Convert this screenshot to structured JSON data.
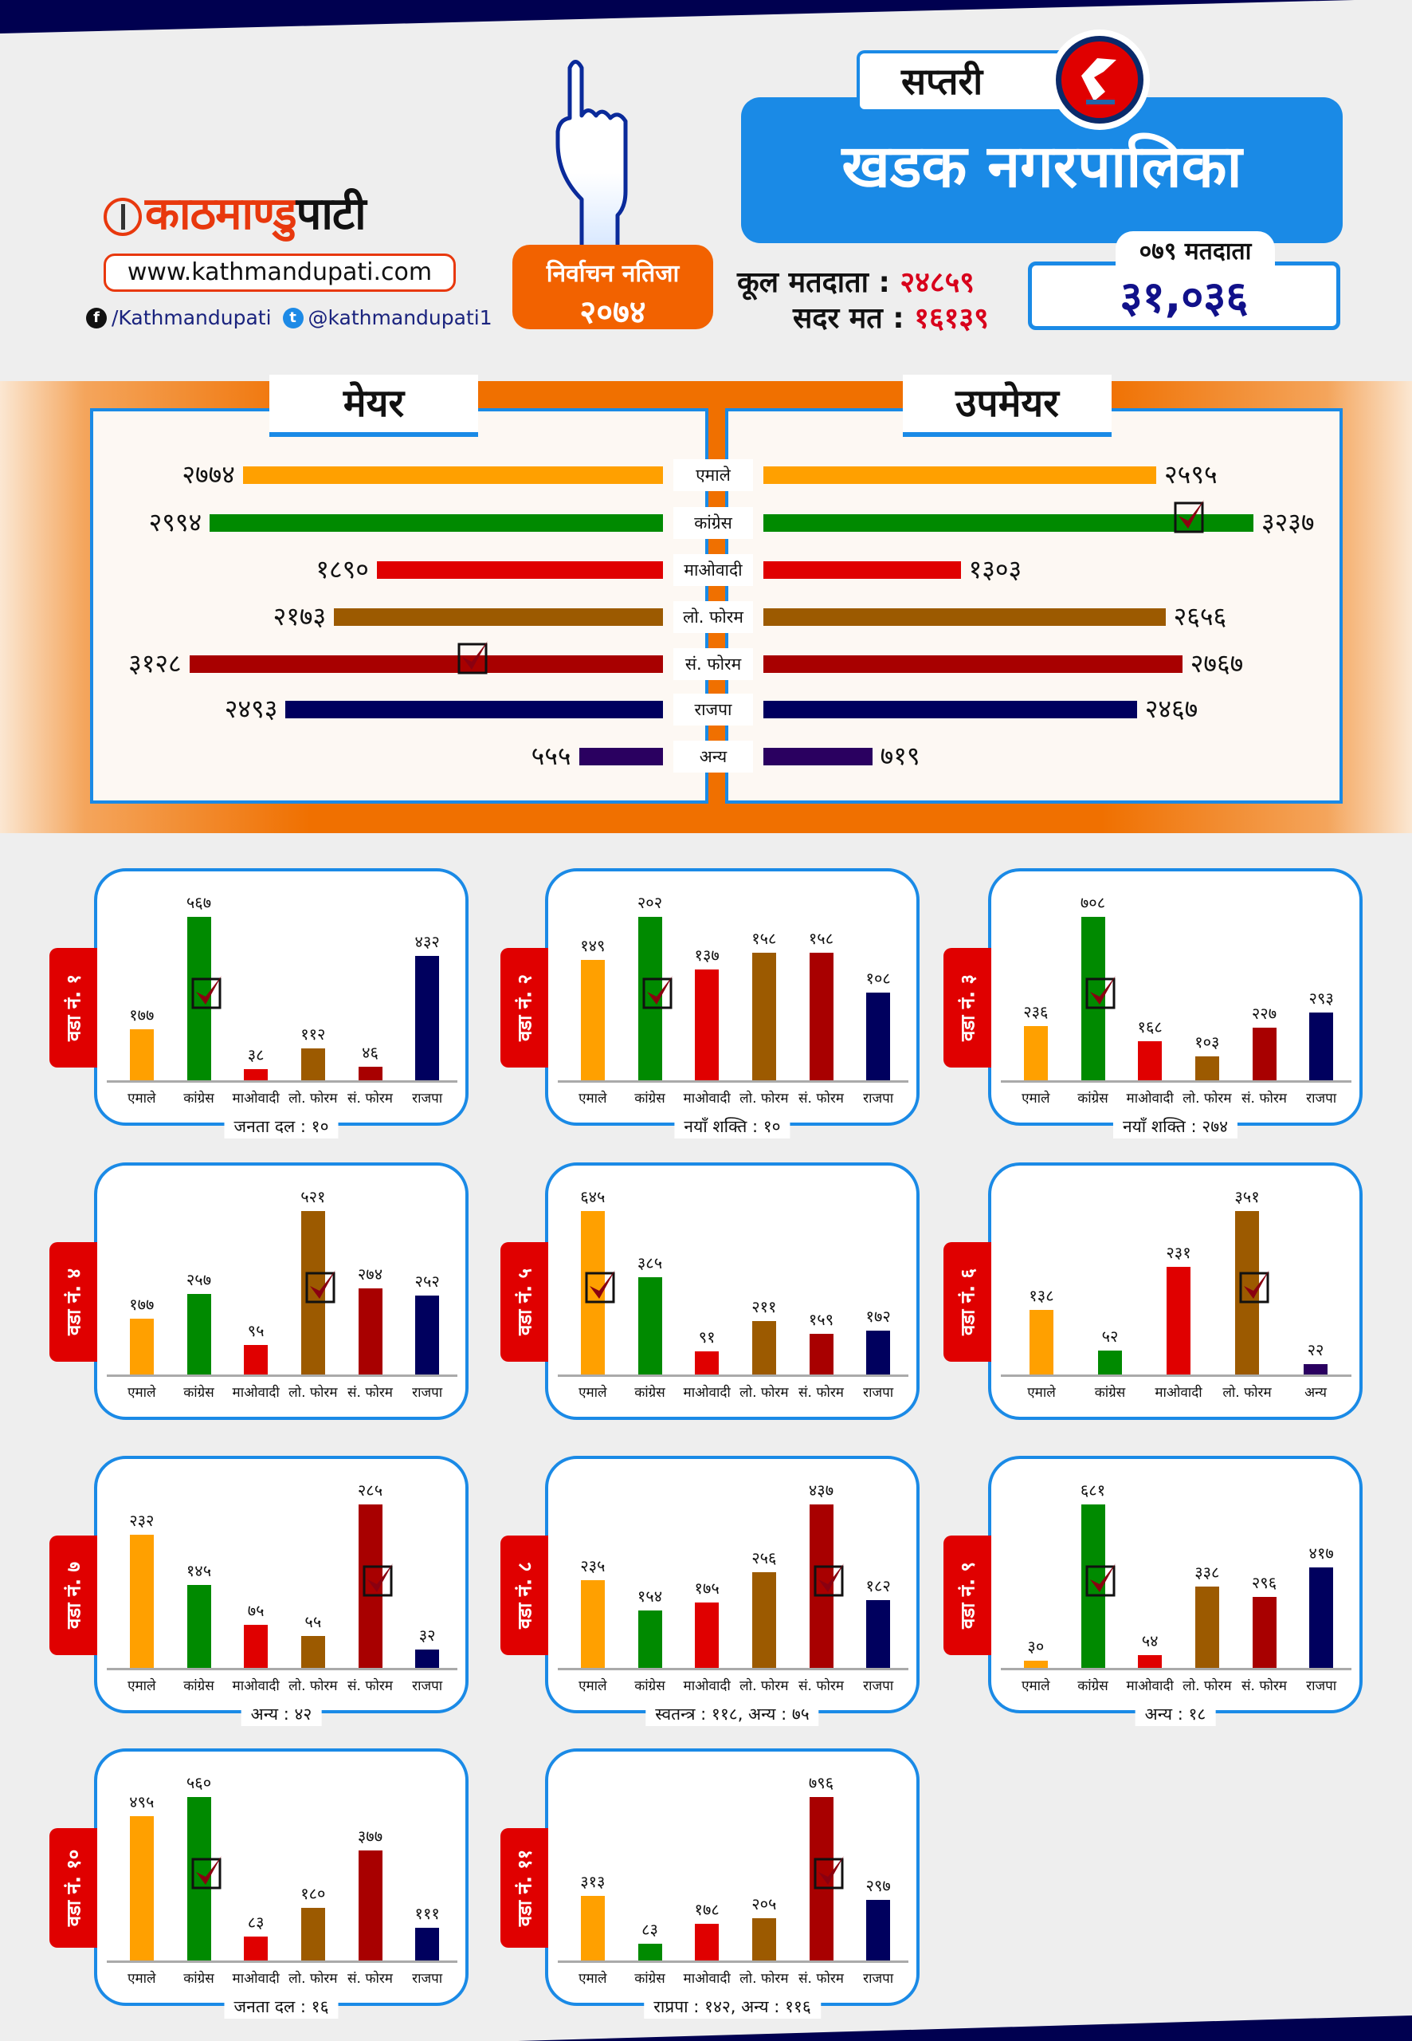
{
  "header": {
    "logo_text_a": "काठमाण्डु",
    "logo_text_b": "पाटी",
    "website": "www.kathmandupati.com",
    "facebook": "/Kathmandupati",
    "twitter": "@kathmandupati1",
    "badge_line1": "निर्वाचन नतिजा",
    "badge_line2": "२०७४",
    "district": "सप्तरी",
    "municipality": "खडक नगरपालिका",
    "total_voters_label": "कूल मतदाता :",
    "total_voters": "२४८५९",
    "valid_votes_label": "सदर मत :",
    "valid_votes": "१६१३९",
    "voters_079_label": "०७९ मतदाता",
    "voters_079": "३१,०३६"
  },
  "results": {
    "mayor_title": "मेयर",
    "deputy_title": "उपमेयर",
    "mayor_winner": "सं. फोरम",
    "deputy_winner": "कांग्रेस",
    "rows": [
      {
        "party": "एमाले",
        "color": "#ffa000",
        "mayor": "२७७४",
        "deputy": "२५९५"
      },
      {
        "party": "कांग्रेस",
        "color": "#008a00",
        "mayor": "२९९४",
        "deputy": "३२३७"
      },
      {
        "party": "माओवादी",
        "color": "#e00000",
        "mayor": "१८९०",
        "deputy": "१३०३"
      },
      {
        "party": "लो. फोरम",
        "color": "#9c5a00",
        "mayor": "२१७३",
        "deputy": "२६५६"
      },
      {
        "party": "सं. फोरम",
        "color": "#a80000",
        "mayor": "३१२८",
        "deputy": "२७६७"
      },
      {
        "party": "राजपा",
        "color": "#00005e",
        "mayor": "२४९३",
        "deputy": "२४६७"
      },
      {
        "party": "अन्य",
        "color": "#2a0060",
        "mayor": "५५५",
        "deputy": "७१९"
      }
    ]
  },
  "party_colors": {
    "एमाले": "#ffa000",
    "कांग्रेस": "#008a00",
    "माओवादी": "#e00000",
    "लो. फोरम": "#9c5a00",
    "सं. फोरम": "#a80000",
    "राजपा": "#00005e",
    "अन्य": "#2a0060"
  },
  "chart_data": [
    {
      "type": "bar",
      "title": "वडा नं. १",
      "categories": [
        "एमाले",
        "कांग्रेस",
        "माओवादी",
        "लो. फोरम",
        "सं. फोरम",
        "राजपा"
      ],
      "values": [
        177,
        567,
        38,
        112,
        46,
        432
      ],
      "winner": "कांग्रेस",
      "footer": "जनता दल : १०"
    },
    {
      "type": "bar",
      "title": "वडा नं. २",
      "categories": [
        "एमाले",
        "कांग्रेस",
        "माओवादी",
        "लो. फोरम",
        "सं. फोरम",
        "राजपा"
      ],
      "values": [
        149,
        202,
        137,
        158,
        158,
        108
      ],
      "winner": "कांग्रेस",
      "footer": "नयाँ शक्ति : १०"
    },
    {
      "type": "bar",
      "title": "वडा नं. ३",
      "categories": [
        "एमाले",
        "कांग्रेस",
        "माओवादी",
        "लो. फोरम",
        "सं. फोरम",
        "राजपा"
      ],
      "values": [
        236,
        708,
        168,
        103,
        227,
        293
      ],
      "winner": "कांग्रेस",
      "footer": "नयाँ शक्ति : २७४"
    },
    {
      "type": "bar",
      "title": "वडा नं. ४",
      "categories": [
        "एमाले",
        "कांग्रेस",
        "माओवादी",
        "लो. फोरम",
        "सं. फोरम",
        "राजपा"
      ],
      "values": [
        177,
        257,
        95,
        521,
        274,
        252
      ],
      "winner": "लो. फोरम",
      "footer": ""
    },
    {
      "type": "bar",
      "title": "वडा नं. ५",
      "categories": [
        "एमाले",
        "कांग्रेस",
        "माओवादी",
        "लो. फोरम",
        "सं. फोरम",
        "राजपा"
      ],
      "values": [
        645,
        385,
        91,
        211,
        159,
        172
      ],
      "winner": "एमाले",
      "footer": ""
    },
    {
      "type": "bar",
      "title": "वडा नं. ६",
      "categories": [
        "एमाले",
        "कांग्रेस",
        "माओवादी",
        "लो. फोरम",
        "अन्य"
      ],
      "values": [
        138,
        52,
        231,
        351,
        22
      ],
      "winner": "लो. फोरम",
      "footer": ""
    },
    {
      "type": "bar",
      "title": "वडा नं. ७",
      "categories": [
        "एमाले",
        "कांग्रेस",
        "माओवादी",
        "लो. फोरम",
        "सं. फोरम",
        "राजपा"
      ],
      "values": [
        232,
        145,
        75,
        55,
        285,
        32
      ],
      "winner": "सं. फोरम",
      "footer": "अन्य : ४२"
    },
    {
      "type": "bar",
      "title": "वडा नं. ८",
      "categories": [
        "एमाले",
        "कांग्रेस",
        "माओवादी",
        "लो. फोरम",
        "सं. फोरम",
        "राजपा"
      ],
      "values": [
        235,
        154,
        175,
        256,
        437,
        182
      ],
      "winner": "सं. फोरम",
      "footer": "स्वतन्त्र : ११८, अन्य : ७५"
    },
    {
      "type": "bar",
      "title": "वडा नं. ९",
      "categories": [
        "एमाले",
        "कांग्रेस",
        "माओवादी",
        "लो. फोरम",
        "सं. फोरम",
        "राजपा"
      ],
      "values": [
        30,
        681,
        54,
        338,
        296,
        417
      ],
      "winner": "कांग्रेस",
      "footer": "अन्य : १८"
    },
    {
      "type": "bar",
      "title": "वडा नं. १०",
      "categories": [
        "एमाले",
        "कांग्रेस",
        "माओवादी",
        "लो. फोरम",
        "सं. फोरम",
        "राजपा"
      ],
      "values": [
        495,
        560,
        83,
        180,
        377,
        111
      ],
      "winner": "कांग्रेस",
      "footer": "जनता दल : १६"
    },
    {
      "type": "bar",
      "title": "वडा नं. ११",
      "categories": [
        "एमाले",
        "कांग्रेस",
        "माओवादी",
        "लो. फोरम",
        "सं. फोरम",
        "राजपा"
      ],
      "values": [
        313,
        83,
        178,
        205,
        796,
        297
      ],
      "winner": "सं. फोरम",
      "footer": "राप्रपा : १४२, अन्य : ११६"
    }
  ]
}
